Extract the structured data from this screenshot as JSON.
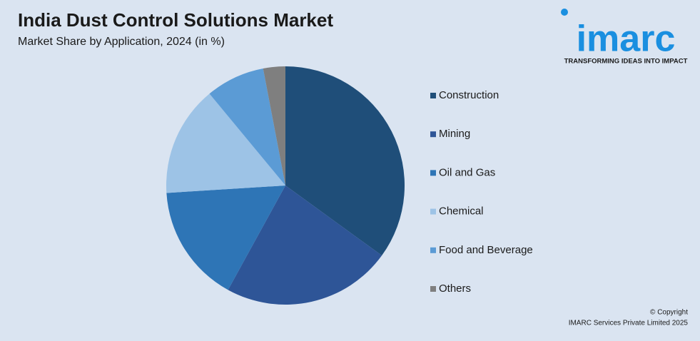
{
  "chart_data": {
    "type": "pie",
    "title": "India Dust Control Solutions Market",
    "subtitle": "Market Share by Application, 2024 (in %)",
    "categories": [
      "Construction",
      "Mining",
      "Oil and Gas",
      "Chemical",
      "Food and Beverage",
      "Others"
    ],
    "values": [
      35,
      23,
      16,
      15,
      8,
      3
    ],
    "colors": [
      "#1f4e79",
      "#2e5597",
      "#2e75b6",
      "#9dc3e6",
      "#5b9bd5",
      "#7f7f7f"
    ],
    "legend": "right"
  },
  "logo": {
    "name": "imarc",
    "tagline": "TRANSFORMING IDEAS INTO IMPACT"
  },
  "footer": {
    "copyright": "© Copyright",
    "company": "IMARC Services Private Limited 2025"
  }
}
